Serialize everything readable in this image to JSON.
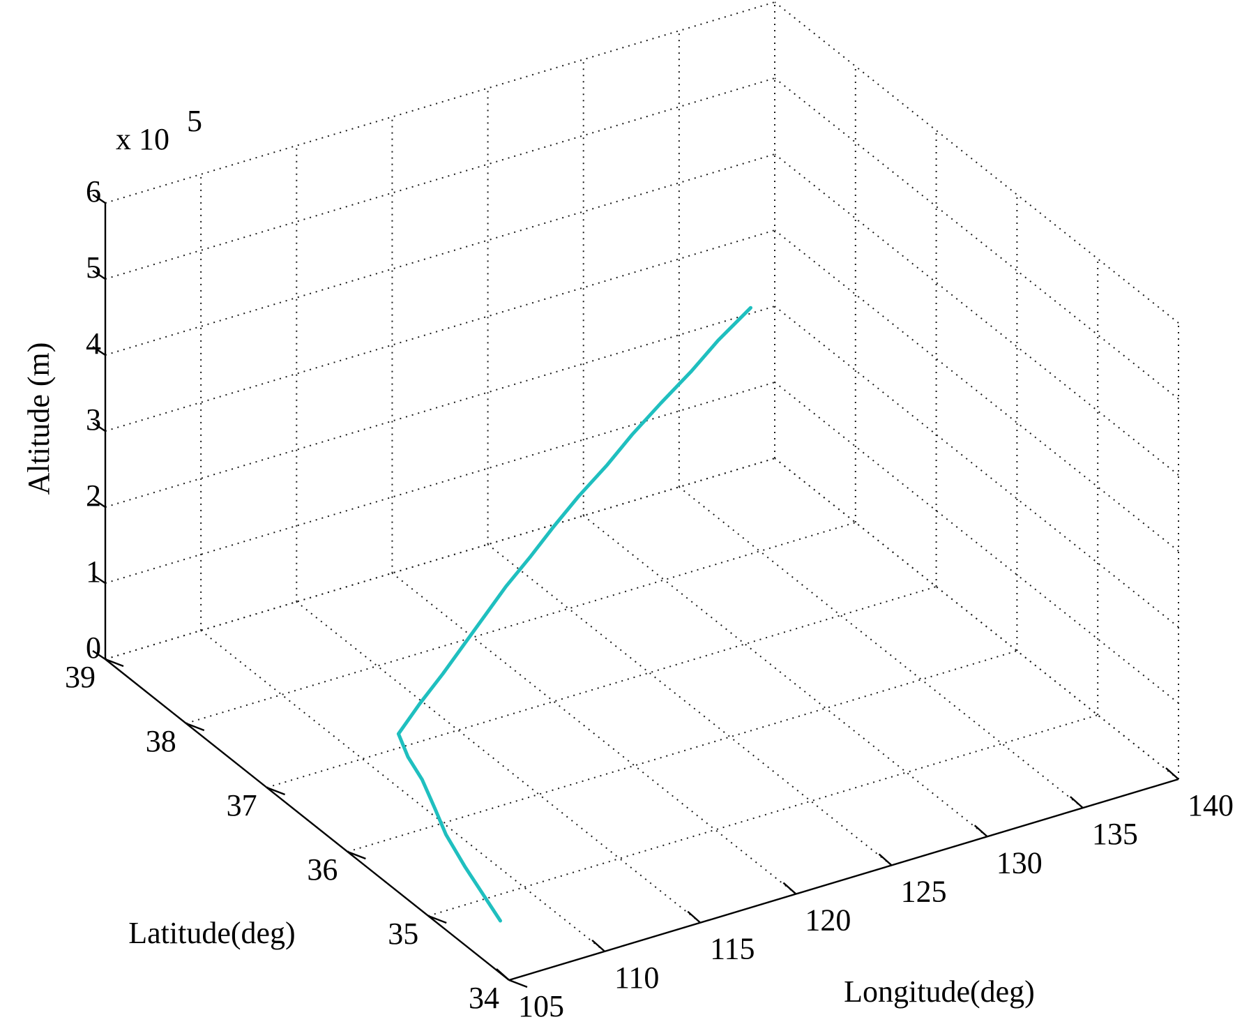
{
  "chart_data": {
    "type": "line3d",
    "title": "",
    "xlabel": "Longitude(deg)",
    "ylabel": "Latitude(deg)",
    "zlabel": "Altitude (m)",
    "z_multiplier_label": {
      "base": "x 10",
      "exponent": "5"
    },
    "xlim": [
      105,
      140
    ],
    "ylim": [
      34,
      39
    ],
    "zlim": [
      0,
      6
    ],
    "x_ticks": [
      "105",
      "110",
      "115",
      "120",
      "125",
      "130",
      "135",
      "140"
    ],
    "y_ticks": [
      "34",
      "35",
      "36",
      "37",
      "38",
      "39"
    ],
    "z_ticks": [
      "0",
      "1",
      "2",
      "3",
      "4",
      "5",
      "6"
    ],
    "grid": true,
    "series": [
      {
        "color": "#1fbfbf",
        "x": [
          107.5,
          108.6,
          109.3,
          110.0,
          110.8,
          111.2,
          111.8,
          113.0,
          114.2,
          115.3,
          116.4,
          117.5,
          118.8,
          120.0,
          121.3,
          122.8,
          124.1,
          125.6,
          127.2,
          128.6,
          130.3
        ],
        "y": [
          34.7,
          35.4,
          35.8,
          36.1,
          36.45,
          36.72,
          36.98,
          37.0,
          37.0,
          37.0,
          37.0,
          37.0,
          37.0,
          37.0,
          37.0,
          37.0,
          37.0,
          37.0,
          37.0,
          37.0,
          37.0
        ],
        "z": [
          0.0,
          0.04,
          0.07,
          0.1,
          0.13,
          0.17,
          0.21,
          0.5,
          0.8,
          1.1,
          1.4,
          1.7,
          2.0,
          2.3,
          2.6,
          2.9,
          3.2,
          3.5,
          3.8,
          4.1,
          4.4
        ]
      }
    ]
  }
}
